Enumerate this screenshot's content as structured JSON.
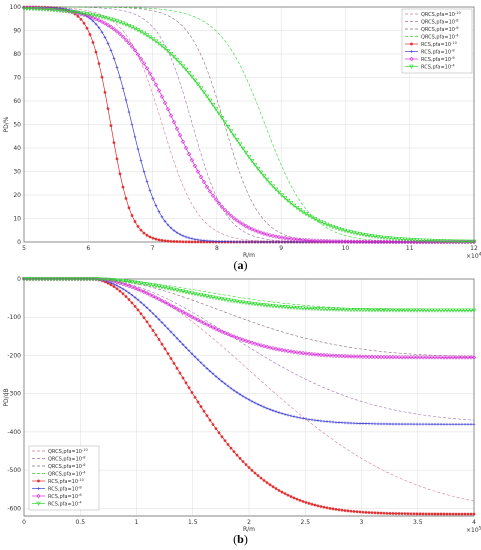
{
  "figure": {
    "caption_a_label": "a",
    "caption_b_label": "b",
    "caption_open": "(",
    "caption_close": ")"
  },
  "colors": {
    "red": "#e0282a",
    "blue": "#3c3cd8",
    "magenta": "#d830d8",
    "green": "#2ed82e",
    "pink_dash": "#d87a98",
    "purple_dash": "#a070b8",
    "gray_dash": "#8a7070",
    "grid": "#dcdcdc"
  },
  "chart_data": [
    {
      "id": "a",
      "type": "line",
      "xlabel": "R/m",
      "ylabel": "PD/%",
      "x_exponent": "×10",
      "x_exponent_power": "4",
      "xlim": [
        5,
        12
      ],
      "ylim": [
        0,
        100
      ],
      "xticks": [
        "5",
        "6",
        "7",
        "8",
        "9",
        "10",
        "11",
        "12"
      ],
      "yticks": [
        "0",
        "10",
        "20",
        "30",
        "40",
        "50",
        "60",
        "70",
        "80",
        "90",
        "100"
      ],
      "grid": true,
      "legend_position": "top-right",
      "series": [
        {
          "name": "QRCS,pfa=10",
          "sup": "-10",
          "style": "dashed",
          "color": "#d87a98",
          "x0": 7.15,
          "w": 0.28,
          "shape": "sigmoid"
        },
        {
          "name": "QRCS,pfa=10",
          "sup": "-8",
          "style": "dashed",
          "color": "#a070b8",
          "x0": 7.62,
          "w": 0.26,
          "shape": "sigmoid"
        },
        {
          "name": "QRCS,pfa=10",
          "sup": "-6",
          "style": "dashed",
          "color": "#8a7070",
          "x0": 8.12,
          "w": 0.27,
          "shape": "sigmoid"
        },
        {
          "name": "QRCS,pfa=10",
          "sup": "-4",
          "style": "dashed",
          "color": "#2ed82e",
          "x0": 8.75,
          "w": 0.35,
          "shape": "sigmoid"
        },
        {
          "name": "RCS,pfa=10",
          "sup": "-10",
          "style": "solid",
          "marker": "star",
          "color": "#e0282a",
          "x0": 6.35,
          "w": 0.16,
          "shape": "sigmoid"
        },
        {
          "name": "RCS,pfa=10",
          "sup": "-8",
          "style": "solid",
          "marker": "plus",
          "color": "#3c3cd8",
          "x0": 6.68,
          "w": 0.22,
          "shape": "sigmoid"
        },
        {
          "name": "RCS,pfa=10",
          "sup": "-6",
          "style": "solid",
          "marker": "diamond",
          "color": "#d830d8",
          "x0": 7.35,
          "w": 0.42,
          "shape": "sigmoid"
        },
        {
          "name": "RCS,pfa=10",
          "sup": "-4",
          "style": "solid",
          "marker": "triangle",
          "color": "#2ed82e",
          "x0": 8.15,
          "w": 0.62,
          "shape": "sigmoid"
        }
      ]
    },
    {
      "id": "b",
      "type": "line",
      "xlabel": "R/m",
      "ylabel": "PD/dB",
      "x_exponent": "×10",
      "x_exponent_power": "5",
      "xlim": [
        0,
        4
      ],
      "ylim": [
        -620,
        0
      ],
      "xticks": [
        "0",
        "0.5",
        "1",
        "1.5",
        "2",
        "2.5",
        "3",
        "3.5",
        "4"
      ],
      "yticks": [
        "0",
        "-100",
        "-200",
        "-300",
        "-400",
        "-500",
        "-600"
      ],
      "grid": true,
      "legend_position": "bottom-left",
      "series": [
        {
          "name": "QRCS,pfa=10",
          "sup": "-10",
          "style": "dashed",
          "color": "#d87a98",
          "L": -615,
          "x0": 0.6,
          "k": 2.0,
          "shape": "decay"
        },
        {
          "name": "QRCS,pfa=10",
          "sup": "-8",
          "style": "dashed",
          "color": "#a070b8",
          "L": -378,
          "x0": 0.6,
          "k": 1.75,
          "shape": "decay"
        },
        {
          "name": "QRCS,pfa=10",
          "sup": "-6",
          "style": "dashed",
          "color": "#8a7070",
          "L": -205,
          "x0": 0.6,
          "k": 1.6,
          "shape": "decay"
        },
        {
          "name": "QRCS,pfa=10",
          "sup": "-4",
          "style": "dashed",
          "color": "#2ed82e",
          "L": -82,
          "x0": 0.6,
          "k": 1.4,
          "shape": "decay"
        },
        {
          "name": "RCS,pfa=10",
          "sup": "-10",
          "style": "solid",
          "marker": "star",
          "color": "#e0282a",
          "L": -615,
          "x0": 0.6,
          "k": 1.1,
          "shape": "decay"
        },
        {
          "name": "RCS,pfa=10",
          "sup": "-8",
          "style": "solid",
          "marker": "plus",
          "color": "#3c3cd8",
          "L": -380,
          "x0": 0.6,
          "k": 1.05,
          "shape": "decay"
        },
        {
          "name": "RCS,pfa=10",
          "sup": "-6",
          "style": "solid",
          "marker": "diamond",
          "color": "#d830d8",
          "L": -205,
          "x0": 0.6,
          "k": 1.1,
          "shape": "decay"
        },
        {
          "name": "RCS,pfa=10",
          "sup": "-4",
          "style": "solid",
          "marker": "triangle",
          "color": "#2ed82e",
          "L": -82,
          "x0": 0.6,
          "k": 1.15,
          "shape": "decay"
        }
      ]
    }
  ]
}
